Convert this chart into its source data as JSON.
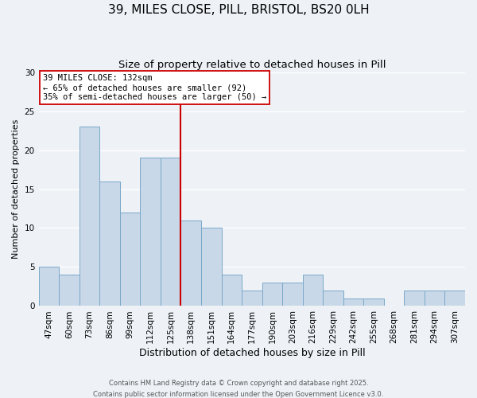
{
  "title": "39, MILES CLOSE, PILL, BRISTOL, BS20 0LH",
  "subtitle": "Size of property relative to detached houses in Pill",
  "xlabel": "Distribution of detached houses by size in Pill",
  "ylabel": "Number of detached properties",
  "bin_labels": [
    "47sqm",
    "60sqm",
    "73sqm",
    "86sqm",
    "99sqm",
    "112sqm",
    "125sqm",
    "138sqm",
    "151sqm",
    "164sqm",
    "177sqm",
    "190sqm",
    "203sqm",
    "216sqm",
    "229sqm",
    "242sqm",
    "255sqm",
    "268sqm",
    "281sqm",
    "294sqm",
    "307sqm"
  ],
  "bar_values": [
    5,
    4,
    23,
    16,
    12,
    19,
    19,
    11,
    10,
    4,
    2,
    3,
    3,
    4,
    2,
    1,
    1,
    0,
    2,
    2,
    2
  ],
  "bar_color": "#c8d8e8",
  "bar_edge_color": "#7aa8c8",
  "vline_x": 6.5,
  "vline_color": "#cc0000",
  "ylim": [
    0,
    30
  ],
  "yticks": [
    0,
    5,
    10,
    15,
    20,
    25,
    30
  ],
  "annotation_title": "39 MILES CLOSE: 132sqm",
  "annotation_line1": "← 65% of detached houses are smaller (92)",
  "annotation_line2": "35% of semi-detached houses are larger (50) →",
  "footer1": "Contains HM Land Registry data © Crown copyright and database right 2025.",
  "footer2": "Contains public sector information licensed under the Open Government Licence v3.0.",
  "background_color": "#eef2f7",
  "grid_color": "#ffffff",
  "title_fontsize": 11,
  "subtitle_fontsize": 9.5,
  "xlabel_fontsize": 9,
  "ylabel_fontsize": 8,
  "tick_fontsize": 7.5,
  "annot_fontsize": 7.5,
  "footer_fontsize": 6
}
